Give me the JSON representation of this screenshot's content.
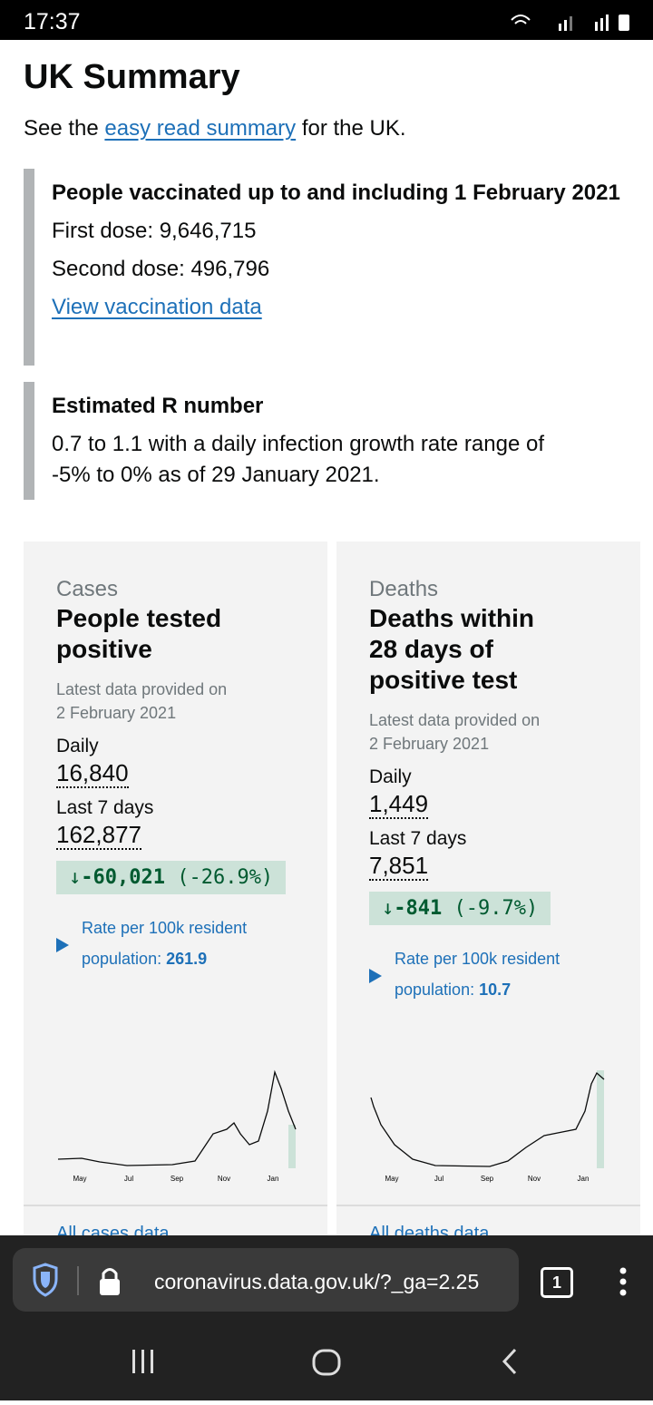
{
  "status_bar": {
    "time": "17:37"
  },
  "header": {
    "title": "UK Summary",
    "intro_prefix": "See the",
    "intro_link": "easy read summary",
    "intro_suffix": "for the UK."
  },
  "vaccination": {
    "heading": "People vaccinated up to and including 1 February 2021",
    "first_dose": "First dose: 9,646,715",
    "second_dose": "Second dose: 496,796",
    "link": "View vaccination data"
  },
  "r_number": {
    "heading": "Estimated R number",
    "text": "0.7 to 1.1 with a daily infection growth rate range of -5% to 0% as of 29 January 2021."
  },
  "cards": [
    {
      "category": "Cases",
      "title": "People tested positive",
      "updated": "Latest data provided on 2 February 2021",
      "daily_label": "Daily",
      "daily_value": "16,840",
      "week_label": "Last 7 days",
      "week_value": "162,877",
      "change": "-60,021",
      "change_pct": "(-26.9%)",
      "rate_label": "Rate per 100k resident population:",
      "rate_value": "261.9",
      "months": [
        "May",
        "Jul",
        "Sep",
        "Nov",
        "Jan"
      ],
      "footer_link": "All cases data"
    },
    {
      "category": "Deaths",
      "title": "Deaths within 28 days of positive test",
      "updated": "Latest data provided on 2 February 2021",
      "daily_label": "Daily",
      "daily_value": "1,449",
      "week_label": "Last 7 days",
      "week_value": "7,851",
      "change": "-841",
      "change_pct": "(-9.7%)",
      "rate_label": "Rate per 100k resident population:",
      "rate_value": "10.7",
      "months": [
        "May",
        "Jul",
        "Sep",
        "Nov",
        "Jan"
      ],
      "footer_link": "All deaths data"
    }
  ],
  "browser": {
    "url": "coronavirus.data.gov.uk/?_ga=2.25",
    "tab_count": "1"
  }
}
